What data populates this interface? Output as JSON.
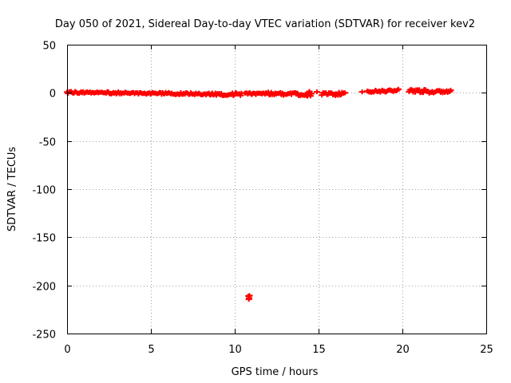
{
  "chart_data": {
    "type": "scatter",
    "title": "Day 050 of 2021, Sidereal Day-to-day VTEC variation (SDTVAR) for receiver kev2",
    "xlabel": "GPS time / hours",
    "ylabel": "SDTVAR / TECUs",
    "xlim": [
      0,
      25
    ],
    "ylim": [
      -250,
      50
    ],
    "xticks": [
      0,
      5,
      10,
      15,
      20,
      25
    ],
    "yticks": [
      -250,
      -200,
      -150,
      -100,
      -50,
      0,
      50
    ],
    "grid": true,
    "marker": "plus",
    "series": [
      {
        "name": "SDTVAR",
        "color": "#ff0000",
        "segments": [
          {
            "x_start": 0.0,
            "x_end": 8.6,
            "step": 0.06,
            "y_from": 0.5,
            "y_to": -1.2,
            "jitter": 1.2
          },
          {
            "x_start": 8.6,
            "x_end": 10.4,
            "step": 0.06,
            "y_from": -1.2,
            "y_to": -1.5,
            "jitter": 1.6
          },
          {
            "x_start": 10.6,
            "x_end": 12.0,
            "step": 0.06,
            "y_from": -1.0,
            "y_to": -0.5,
            "jitter": 1.2
          },
          {
            "x_start": 12.0,
            "x_end": 14.6,
            "step": 0.06,
            "y_from": -0.5,
            "y_to": -2.0,
            "jitter": 1.8
          },
          {
            "x_start": 15.2,
            "x_end": 16.6,
            "step": 0.06,
            "y_from": -1.0,
            "y_to": -1.0,
            "jitter": 1.6
          },
          {
            "x_start": 17.9,
            "x_end": 19.8,
            "step": 0.06,
            "y_from": 1.0,
            "y_to": 2.5,
            "jitter": 1.4
          },
          {
            "x_start": 20.4,
            "x_end": 21.8,
            "step": 0.06,
            "y_from": 3.0,
            "y_to": 1.0,
            "jitter": 2.0
          },
          {
            "x_start": 21.8,
            "x_end": 22.9,
            "step": 0.06,
            "y_from": 1.0,
            "y_to": 1.5,
            "jitter": 1.4
          }
        ],
        "points": [
          {
            "x": 14.45,
            "y": 1.5
          },
          {
            "x": 14.9,
            "y": 1.0
          },
          {
            "x": 17.6,
            "y": 1.0
          },
          {
            "x": 16.0,
            "y": -2.8
          },
          {
            "x": 10.82,
            "y": -211.0
          },
          {
            "x": 10.86,
            "y": -213.0
          },
          {
            "x": 10.84,
            "y": -214.5
          },
          {
            "x": 10.88,
            "y": -210.5
          }
        ]
      }
    ]
  }
}
